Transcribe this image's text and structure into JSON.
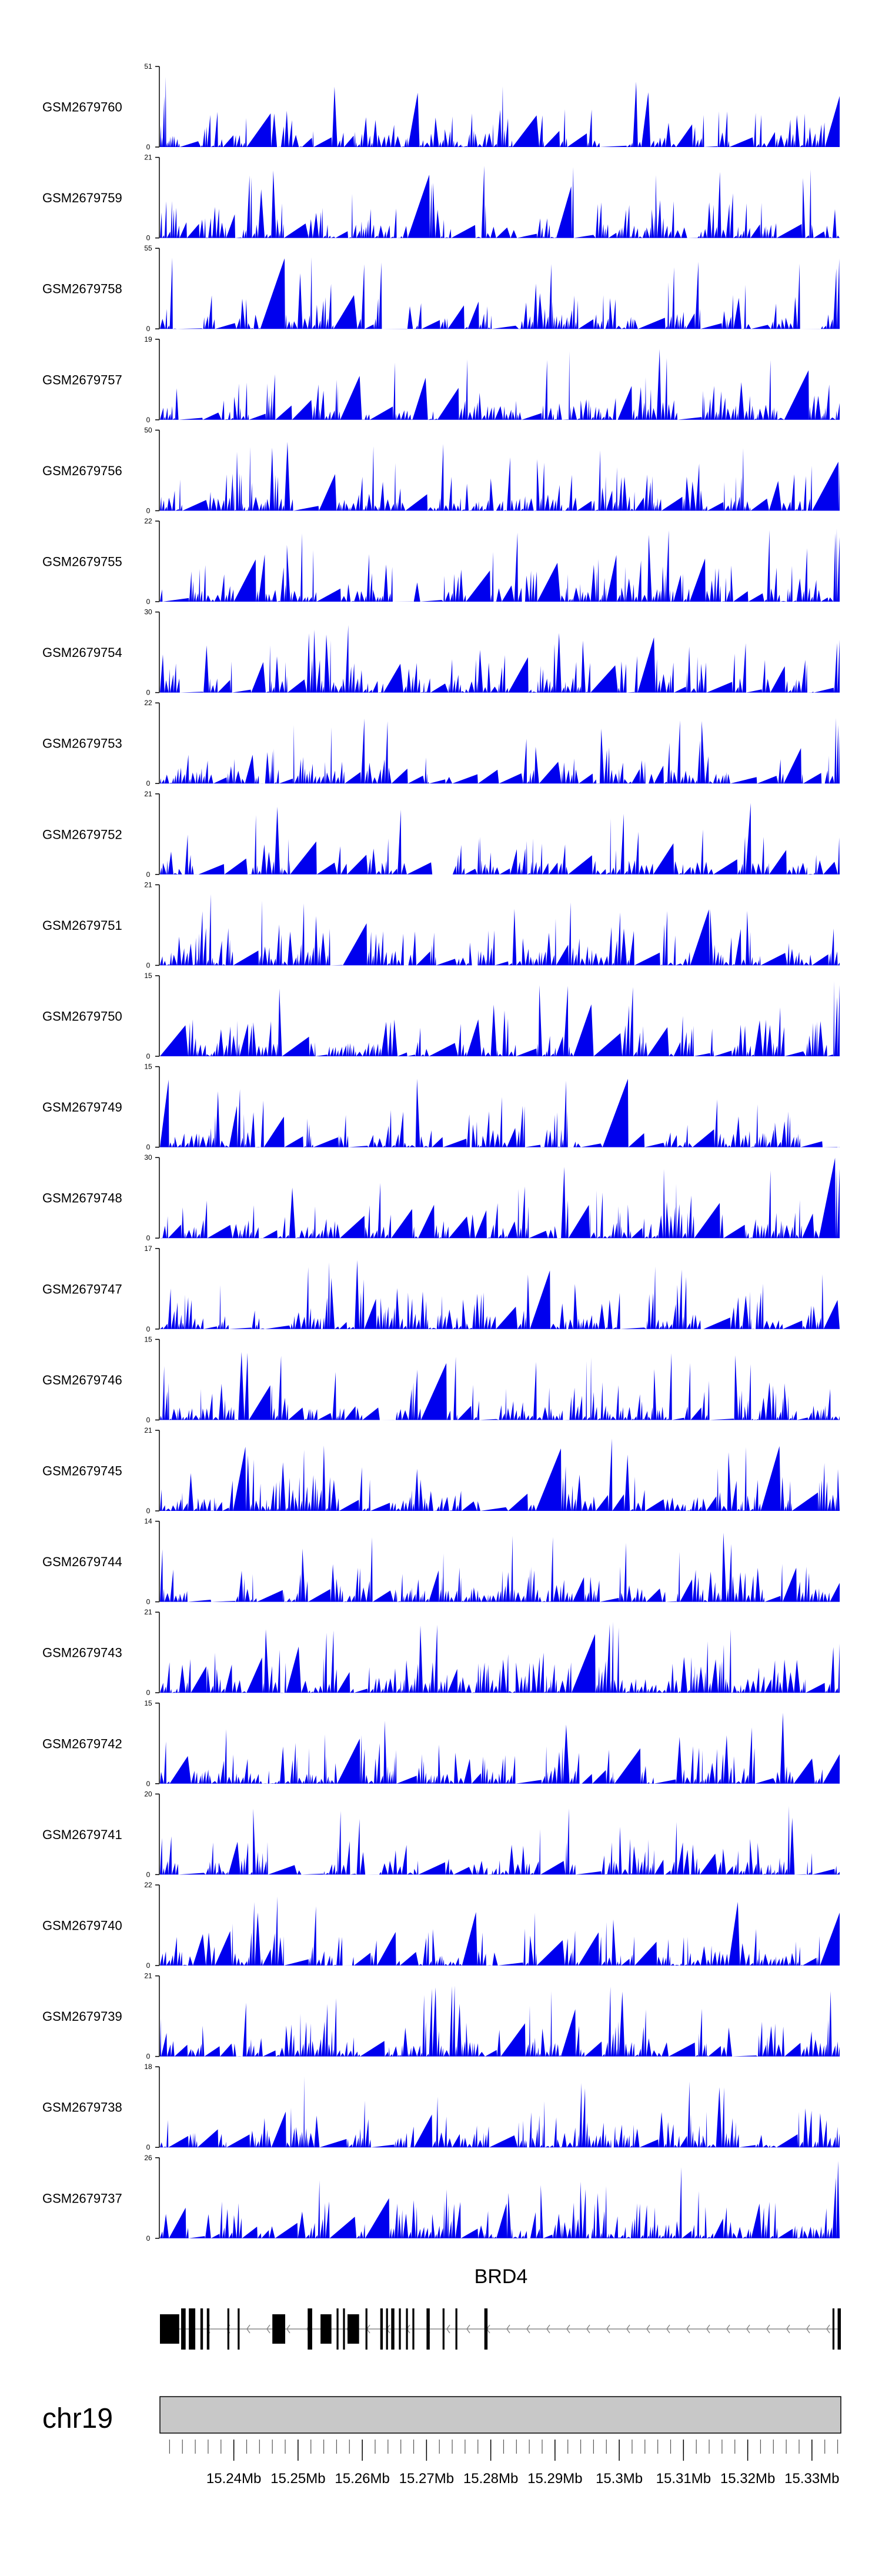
{
  "chart_data": {
    "type": "area",
    "title": "",
    "region": {
      "chromosome": "chr19",
      "start_mb": 15.2285,
      "end_mb": 15.3345
    },
    "fill_color": "#0000ee",
    "axis_color": "#000000",
    "ideogram_color": "#c8c8c8",
    "series": [
      {
        "name": "GSM2679760",
        "ymax": 51,
        "ymin": 0
      },
      {
        "name": "GSM2679759",
        "ymax": 21,
        "ymin": 0
      },
      {
        "name": "GSM2679758",
        "ymax": 55,
        "ymin": 0
      },
      {
        "name": "GSM2679757",
        "ymax": 19,
        "ymin": 0
      },
      {
        "name": "GSM2679756",
        "ymax": 50,
        "ymin": 0
      },
      {
        "name": "GSM2679755",
        "ymax": 22,
        "ymin": 0
      },
      {
        "name": "GSM2679754",
        "ymax": 30,
        "ymin": 0
      },
      {
        "name": "GSM2679753",
        "ymax": 22,
        "ymin": 0
      },
      {
        "name": "GSM2679752",
        "ymax": 21,
        "ymin": 0
      },
      {
        "name": "GSM2679751",
        "ymax": 21,
        "ymin": 0
      },
      {
        "name": "GSM2679750",
        "ymax": 15,
        "ymin": 0
      },
      {
        "name": "GSM2679749",
        "ymax": 15,
        "ymin": 0
      },
      {
        "name": "GSM2679748",
        "ymax": 30,
        "ymin": 0
      },
      {
        "name": "GSM2679747",
        "ymax": 17,
        "ymin": 0
      },
      {
        "name": "GSM2679746",
        "ymax": 15,
        "ymin": 0
      },
      {
        "name": "GSM2679745",
        "ymax": 21,
        "ymin": 0
      },
      {
        "name": "GSM2679744",
        "ymax": 14,
        "ymin": 0
      },
      {
        "name": "GSM2679743",
        "ymax": 21,
        "ymin": 0
      },
      {
        "name": "GSM2679742",
        "ymax": 15,
        "ymin": 0
      },
      {
        "name": "GSM2679741",
        "ymax": 20,
        "ymin": 0
      },
      {
        "name": "GSM2679740",
        "ymax": 22,
        "ymin": 0
      },
      {
        "name": "GSM2679739",
        "ymax": 21,
        "ymin": 0
      },
      {
        "name": "GSM2679738",
        "ymax": 18,
        "ymin": 0
      },
      {
        "name": "GSM2679737",
        "ymax": 26,
        "ymin": 0
      }
    ],
    "gene": {
      "name": "BRD4",
      "strand": "-",
      "exons_mb": [
        [
          15.2285,
          15.2315
        ],
        [
          15.2318,
          15.2325
        ],
        [
          15.233,
          15.234
        ],
        [
          15.2348,
          15.2352
        ],
        [
          15.2358,
          15.2362
        ],
        [
          15.239,
          15.2393
        ],
        [
          15.2406,
          15.2409
        ],
        [
          15.246,
          15.248
        ],
        [
          15.2515,
          15.2522
        ],
        [
          15.2535,
          15.2552
        ],
        [
          15.256,
          15.2563
        ],
        [
          15.257,
          15.2573
        ],
        [
          15.2577,
          15.2595
        ],
        [
          15.2605,
          15.2608
        ],
        [
          15.2628,
          15.2632
        ],
        [
          15.2637,
          15.264
        ],
        [
          15.2645,
          15.265
        ],
        [
          15.2657,
          15.266
        ],
        [
          15.2668,
          15.2671
        ],
        [
          15.2678,
          15.2681
        ],
        [
          15.27,
          15.2705
        ],
        [
          15.2725,
          15.2728
        ],
        [
          15.2745,
          15.2748
        ],
        [
          15.279,
          15.2795
        ],
        [
          15.3332,
          15.3335
        ],
        [
          15.334,
          15.3345
        ]
      ]
    },
    "x_axis": {
      "tick_labels": [
        "15.24Mb",
        "15.25Mb",
        "15.26Mb",
        "15.27Mb",
        "15.28Mb",
        "15.29Mb",
        "15.3Mb",
        "15.31Mb",
        "15.32Mb",
        "15.33Mb"
      ],
      "tick_values_mb": [
        15.24,
        15.25,
        15.26,
        15.27,
        15.28,
        15.29,
        15.3,
        15.31,
        15.32,
        15.33
      ],
      "minor_tick_step_mb": 0.002
    }
  }
}
